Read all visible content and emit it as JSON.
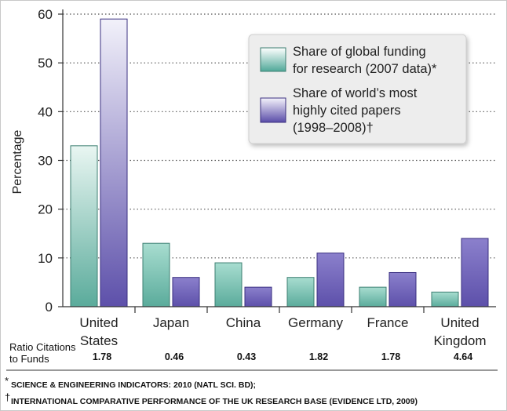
{
  "chart_data": {
    "type": "bar",
    "categories": [
      [
        "United",
        "States"
      ],
      [
        "Japan"
      ],
      [
        "China"
      ],
      [
        "Germany"
      ],
      [
        "France"
      ],
      [
        "United",
        "Kingdom"
      ]
    ],
    "series": [
      {
        "name": [
          "Share of global funding",
          "for research (2007 data)*"
        ],
        "values": [
          33,
          13,
          9,
          6,
          4,
          3
        ],
        "color": "#6dbfad"
      },
      {
        "name": [
          "Share of world’s most",
          "highly cited papers",
          "(1998–2008)†"
        ],
        "values": [
          59,
          6,
          4,
          11,
          7,
          14
        ],
        "color": "#6c5fb8"
      }
    ],
    "ylabel": "Percentage",
    "ylim": [
      0,
      60
    ],
    "yticks": [
      0,
      10,
      20,
      30,
      40,
      50,
      60
    ],
    "grid": "dotted horizontal",
    "legend_position": "top-right",
    "ratio_label": [
      "Ratio Citations",
      "to Funds"
    ],
    "ratio_values": [
      "1.78",
      "0.46",
      "0.43",
      "1.82",
      "1.78",
      "4.64"
    ]
  },
  "footnotes": [
    {
      "mark": "*",
      "text": "SCIENCE & ENGINEERING INDICATORS: 2010 (NATL SCI. BD);"
    },
    {
      "mark": "†",
      "text": "INTERNATIONAL COMPARATIVE PERFORMANCE OF THE UK RESEARCH BASE (EVIDENCE LTD, 2009)"
    }
  ]
}
